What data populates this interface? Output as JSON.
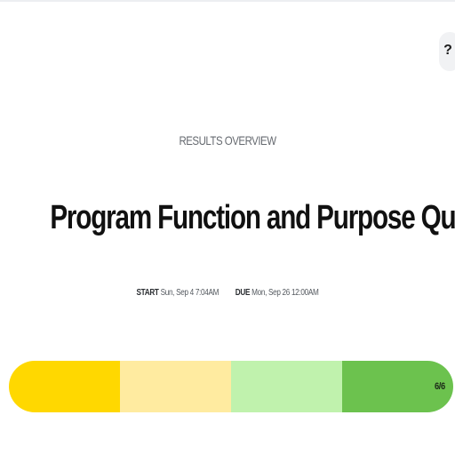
{
  "help": {
    "label": "?",
    "icon": "help-icon"
  },
  "header": {
    "eyebrow": "RESULTS OVERVIEW",
    "title": "Program Function and Purpose Quiz (MCQs)"
  },
  "schedule": {
    "start_label": "START",
    "start_value": "Sun, Sep 4 7:04AM",
    "due_label": "DUE",
    "due_value": "Mon, Sep 26 12:00AM"
  },
  "progress": {
    "score_text": "6/6",
    "completed": 6,
    "total": 6,
    "segment_colors": [
      "#ffd800",
      "#ffeba0",
      "#c0f2ad",
      "#6cc24e"
    ]
  }
}
